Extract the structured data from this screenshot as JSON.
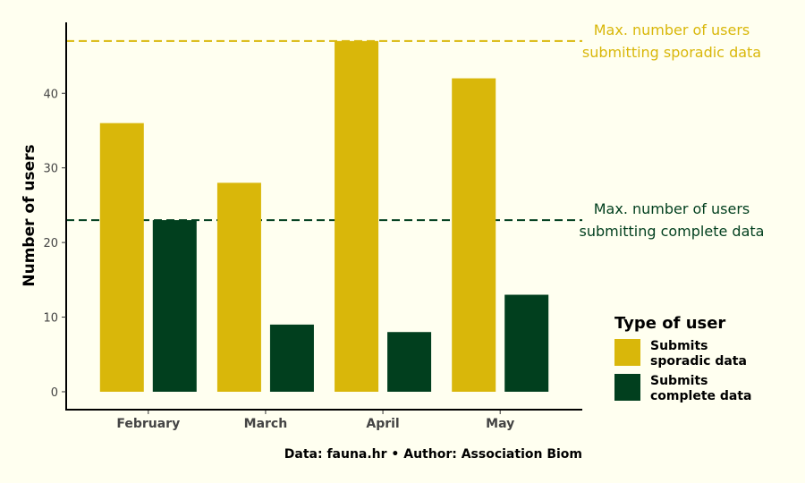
{
  "chart_data": {
    "type": "bar",
    "categories": [
      "February",
      "March",
      "April",
      "May"
    ],
    "series": [
      {
        "name": "Submits sporadic data",
        "name_lines": [
          "Submits",
          "sporadic data"
        ],
        "color": "#d9b70a",
        "values": [
          36,
          28,
          47,
          42
        ]
      },
      {
        "name": "Submits complete data",
        "name_lines": [
          "Submits",
          "complete data"
        ],
        "color": "#013f1e",
        "values": [
          23,
          9,
          8,
          13
        ]
      }
    ],
    "ylabel": "Number of users",
    "xlabel": "",
    "ylim": [
      -2.4,
      49.5
    ],
    "yticks": [
      0,
      10,
      20,
      30,
      40
    ],
    "grid": false,
    "legend": {
      "title": "Type of user",
      "placement": "right"
    },
    "reference_lines": [
      {
        "value": 47,
        "color": "#d9b70a",
        "label_lines": [
          "Max. number of users",
          "submitting sporadic data"
        ]
      },
      {
        "value": 23,
        "color": "#013f1e",
        "label_lines": [
          "Max. number of users",
          "submitting complete data"
        ]
      }
    ],
    "caption": "Data: fauna.hr • Author: Association Biom"
  }
}
